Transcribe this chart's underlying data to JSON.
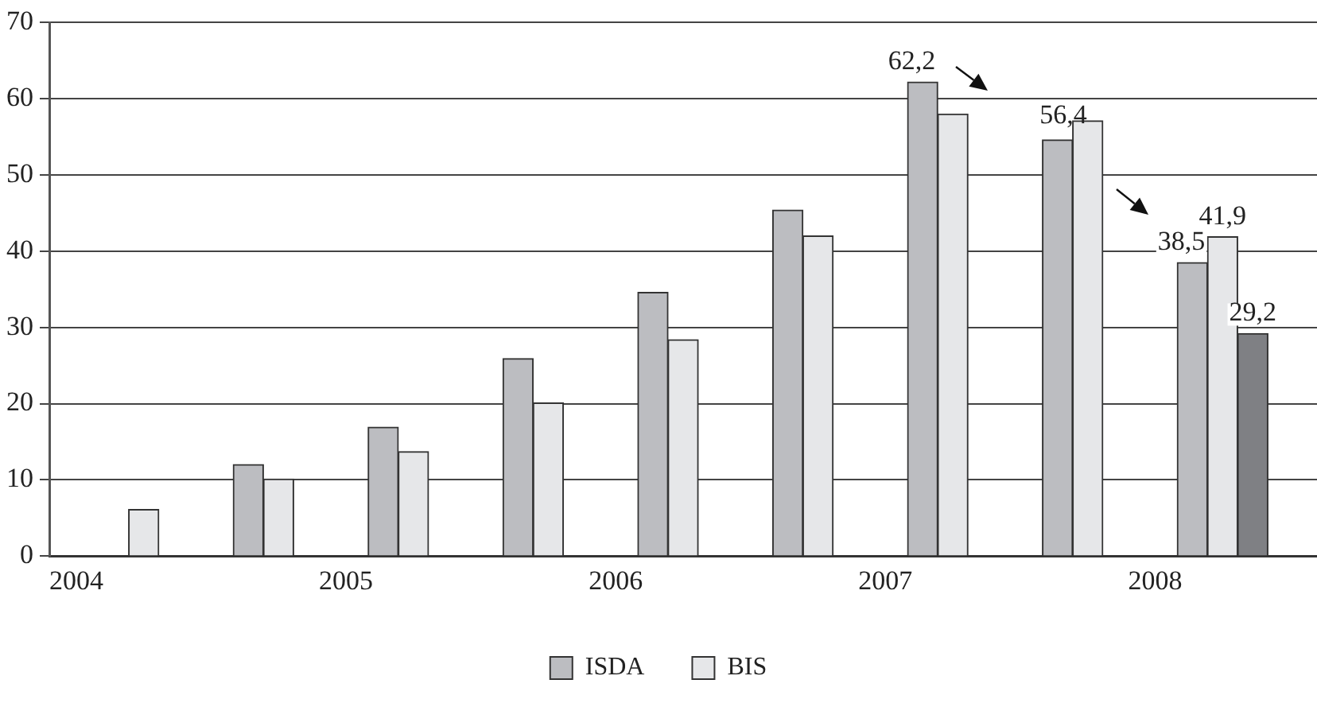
{
  "chart_data": {
    "type": "bar",
    "x": [
      2004.25,
      2004.75,
      2005.25,
      2005.75,
      2006.25,
      2006.75,
      2007.25,
      2007.75,
      2008.25
    ],
    "series": [
      {
        "name": "ISDA",
        "color": "#bcbdc1",
        "values": [
          null,
          12,
          16.9,
          25.9,
          34.6,
          45.4,
          62.2,
          54.6,
          38.5
        ],
        "value_labels": [
          null,
          null,
          null,
          null,
          null,
          null,
          "62,2",
          null,
          "38,5"
        ]
      },
      {
        "name": "BIS",
        "color": "#e6e7e9",
        "values": [
          6.1,
          10.1,
          13.7,
          20.1,
          28.4,
          42,
          58,
          57.1,
          41.9
        ],
        "value_labels": [
          null,
          null,
          null,
          null,
          null,
          null,
          null,
          null,
          "41,9"
        ]
      },
      {
        "color": "#7f8084",
        "values": [
          null,
          null,
          null,
          null,
          null,
          null,
          null,
          null,
          29.2
        ],
        "value_labels": [
          null,
          null,
          null,
          null,
          null,
          null,
          null,
          null,
          "29,2"
        ]
      }
    ],
    "annotations": [
      {
        "text": "56,4",
        "x": 2007.75,
        "y": 56.4
      }
    ],
    "xlim": [
      2003.9,
      2008.6
    ],
    "xticks": [
      2004,
      2005,
      2006,
      2007,
      2008
    ],
    "ylim": [
      0,
      70
    ],
    "yticks": [
      0,
      10,
      20,
      30,
      40,
      50,
      60,
      70
    ],
    "grid": "y",
    "legend": "bottom"
  }
}
